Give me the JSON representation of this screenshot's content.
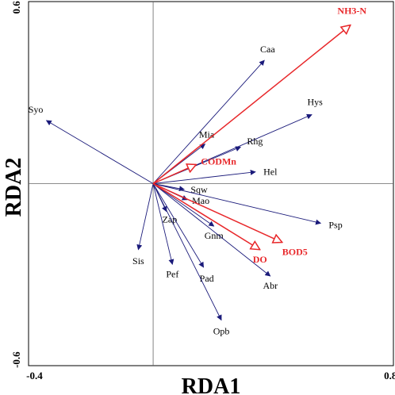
{
  "chart_data": {
    "type": "scatter",
    "subtype": "rda-biplot",
    "xlabel": "RDA1",
    "ylabel": "RDA2",
    "xlim": [
      -0.42,
      0.81
    ],
    "ylim": [
      -0.62,
      0.62
    ],
    "x_ticks": [
      {
        "value": -0.4,
        "label": "-0.4"
      },
      {
        "value": 0.8,
        "label": "0.8"
      }
    ],
    "y_ticks": [
      {
        "value": 0.6,
        "label": "0.6"
      },
      {
        "value": -0.6,
        "label": "-0.6"
      }
    ],
    "reference_lines": {
      "x": 0,
      "y": 0
    },
    "species_color": "#1a1a7a",
    "env_color": "#e8272a",
    "species": [
      {
        "name": "Syo",
        "x": -0.36,
        "y": 0.215
      },
      {
        "name": "Caa",
        "x": 0.375,
        "y": 0.42
      },
      {
        "name": "Hys",
        "x": 0.535,
        "y": 0.235
      },
      {
        "name": "Mia",
        "x": 0.175,
        "y": 0.135
      },
      {
        "name": "Rhg",
        "x": 0.295,
        "y": 0.125
      },
      {
        "name": "Hel",
        "x": 0.345,
        "y": 0.04
      },
      {
        "name": "Sqw",
        "x": 0.105,
        "y": -0.02
      },
      {
        "name": "Mao",
        "x": 0.115,
        "y": -0.055
      },
      {
        "name": "Psp",
        "x": 0.565,
        "y": -0.135
      },
      {
        "name": "Zap",
        "x": 0.045,
        "y": -0.095
      },
      {
        "name": "Gnm",
        "x": 0.205,
        "y": -0.145
      },
      {
        "name": "Sis",
        "x": -0.05,
        "y": -0.225
      },
      {
        "name": "Pef",
        "x": 0.065,
        "y": -0.275
      },
      {
        "name": "Pad",
        "x": 0.17,
        "y": -0.285
      },
      {
        "name": "Abr",
        "x": 0.395,
        "y": -0.315
      },
      {
        "name": "Opb",
        "x": 0.23,
        "y": -0.465
      }
    ],
    "environment": [
      {
        "name": "NH3-N",
        "x": 0.665,
        "y": 0.54
      },
      {
        "name": "CODMn",
        "x": 0.145,
        "y": 0.065
      },
      {
        "name": "DO",
        "x": 0.36,
        "y": -0.225
      },
      {
        "name": "BOD5",
        "x": 0.435,
        "y": -0.2
      }
    ]
  }
}
